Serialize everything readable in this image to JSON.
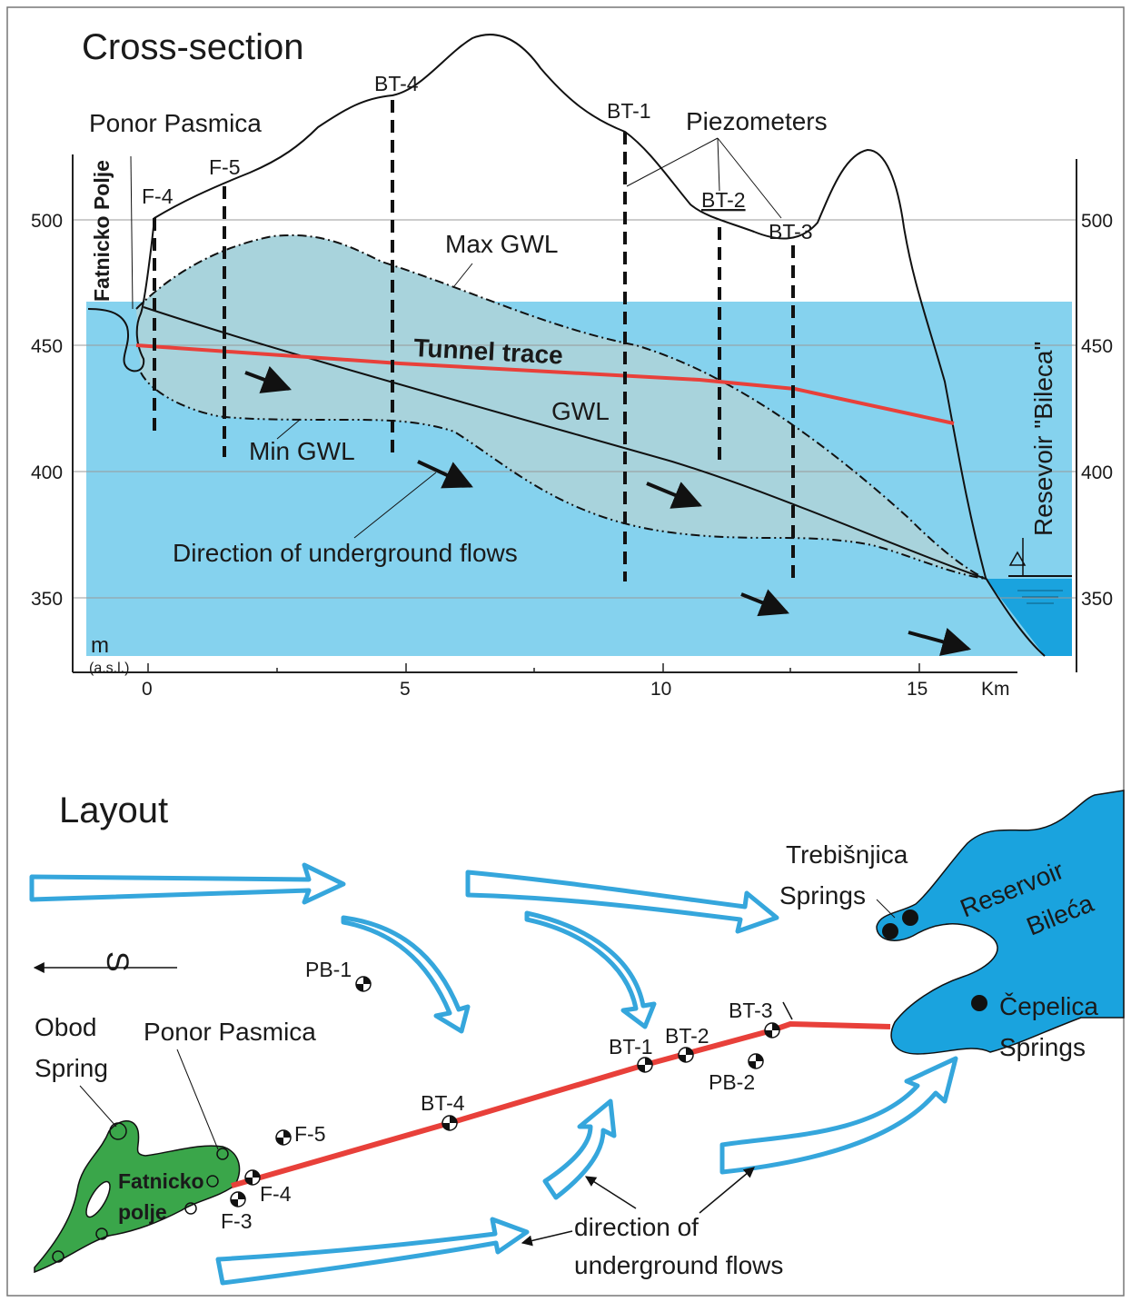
{
  "cross_section": {
    "title": "Cross-section",
    "y_axis_unit": "m",
    "y_axis_unit_sub": "(a.s.l.)",
    "y_ticks": [
      "500",
      "450",
      "400",
      "350"
    ],
    "x_ticks": [
      "0",
      "5",
      "10",
      "15"
    ],
    "x_unit": "Km",
    "labels": {
      "ponor": "Ponor Pasmica",
      "polje": "Fatnicko Polje",
      "piezometers": "Piezometers",
      "max_gwl": "Max GWL",
      "min_gwl": "Min GWL",
      "gwl": "GWL",
      "tunnel": "Tunnel trace",
      "direction": "Direction of underground flows",
      "reservoir": "Resevoir \"Bileca\""
    },
    "boreholes": [
      "F-4",
      "F-5",
      "BT-4",
      "BT-1",
      "BT-2",
      "BT-3"
    ]
  },
  "layout": {
    "title": "Layout",
    "north": "S",
    "labels": {
      "trebisnjica": "Trebišnjica",
      "springs": "Springs",
      "reservoir_1": "Reservoir",
      "reservoir_2": "Bileća",
      "cepelica": "Čepelica",
      "cepelica_springs": "Springs",
      "obod_1": "Obod",
      "obod_2": "Spring",
      "ponor": "Ponor Pasmica",
      "polje_1": "Fatnicko",
      "polje_2": "polje",
      "direction_1": "direction of",
      "direction_2": "underground flows"
    },
    "points": [
      "PB-1",
      "BT-3",
      "BT-1",
      "BT-2",
      "PB-2",
      "BT-4",
      "F-5",
      "F-4",
      "F-3"
    ]
  },
  "colors": {
    "water": "#85d2ee",
    "gwl_zone": "#a8d3dc",
    "reservoir": "#1aa3de",
    "tunnel": "#e8403a",
    "polje": "#3aa64a",
    "arrow_outline": "#35a6dc"
  }
}
